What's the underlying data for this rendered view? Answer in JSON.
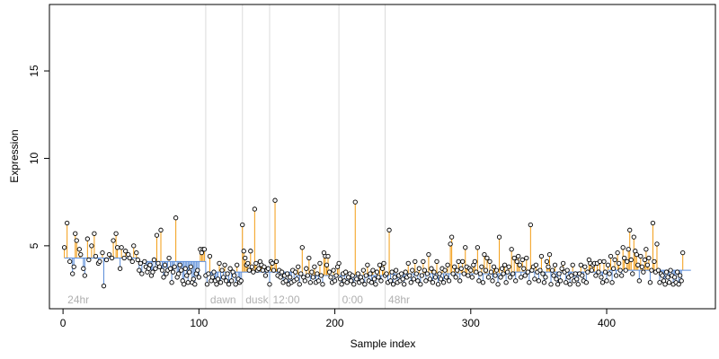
{
  "chart_data": {
    "type": "scatter",
    "title": "",
    "xlabel": "Sample index",
    "ylabel": "Expression",
    "xlim": [
      -10,
      480
    ],
    "ylim": [
      1.4,
      18.8
    ],
    "xticks": [
      0,
      100,
      200,
      300,
      400
    ],
    "yticks": [
      5,
      10,
      15
    ],
    "baselines": [
      {
        "x_start": 1,
        "x_end": 54,
        "y": 4.3
      },
      {
        "x_start": 55,
        "x_end": 105,
        "y": 4.1
      },
      {
        "x_start": 106,
        "x_end": 170,
        "y": 3.5
      },
      {
        "x_start": 171,
        "x_end": 240,
        "y": 3.3
      },
      {
        "x_start": 241,
        "x_end": 330,
        "y": 3.4
      },
      {
        "x_start": 331,
        "x_end": 400,
        "y": 3.5
      },
      {
        "x_start": 401,
        "x_end": 462,
        "y": 3.6
      }
    ],
    "vlines": [
      105,
      132,
      152,
      203,
      237
    ],
    "annotations": [
      {
        "x": 2,
        "label": "24hr"
      },
      {
        "x": 107,
        "label": "dawn"
      },
      {
        "x": 133,
        "label": "dusk"
      },
      {
        "x": 153,
        "label": "12:00"
      },
      {
        "x": 204,
        "label": "0:00"
      },
      {
        "x": 238,
        "label": "48hr"
      }
    ],
    "points": [
      [
        1,
        4.9
      ],
      [
        3,
        6.3
      ],
      [
        5,
        4.1
      ],
      [
        7,
        3.4
      ],
      [
        8,
        3.8
      ],
      [
        9,
        5.7
      ],
      [
        10,
        5.3
      ],
      [
        12,
        4.8
      ],
      [
        13,
        4.5
      ],
      [
        15,
        3.7
      ],
      [
        16,
        3.3
      ],
      [
        18,
        5.4
      ],
      [
        19,
        4.2
      ],
      [
        21,
        5.0
      ],
      [
        23,
        5.7
      ],
      [
        24,
        4.4
      ],
      [
        26,
        4.0
      ],
      [
        27,
        4.1
      ],
      [
        29,
        4.6
      ],
      [
        30,
        2.7
      ],
      [
        32,
        4.2
      ],
      [
        34,
        4.5
      ],
      [
        36,
        4.3
      ],
      [
        37,
        5.3
      ],
      [
        39,
        5.7
      ],
      [
        40,
        4.9
      ],
      [
        42,
        3.7
      ],
      [
        43,
        4.9
      ],
      [
        45,
        4.3
      ],
      [
        46,
        4.7
      ],
      [
        48,
        4.5
      ],
      [
        49,
        4.3
      ],
      [
        51,
        4.1
      ],
      [
        52,
        5.0
      ],
      [
        54,
        4.6
      ],
      [
        55,
        4.2
      ],
      [
        56,
        3.6
      ],
      [
        57,
        4.0
      ],
      [
        58,
        3.4
      ],
      [
        60,
        4.1
      ],
      [
        61,
        3.8
      ],
      [
        62,
        3.5
      ],
      [
        63,
        3.7
      ],
      [
        64,
        3.9
      ],
      [
        65,
        3.3
      ],
      [
        66,
        3.5
      ],
      [
        67,
        4.2
      ],
      [
        68,
        3.7
      ],
      [
        69,
        5.6
      ],
      [
        70,
        4.0
      ],
      [
        71,
        3.8
      ],
      [
        72,
        5.9
      ],
      [
        73,
        3.6
      ],
      [
        74,
        3.2
      ],
      [
        75,
        3.9
      ],
      [
        76,
        3.4
      ],
      [
        77,
        3.6
      ],
      [
        78,
        4.3
      ],
      [
        79,
        3.7
      ],
      [
        80,
        2.9
      ],
      [
        81,
        3.5
      ],
      [
        82,
        3.8
      ],
      [
        83,
        6.6
      ],
      [
        84,
        3.2
      ],
      [
        85,
        3.4
      ],
      [
        86,
        3.9
      ],
      [
        87,
        3.6
      ],
      [
        88,
        3.0
      ],
      [
        89,
        2.8
      ],
      [
        90,
        3.7
      ],
      [
        91,
        3.3
      ],
      [
        92,
        2.9
      ],
      [
        93,
        3.5
      ],
      [
        94,
        3.8
      ],
      [
        95,
        2.9
      ],
      [
        96,
        3.1
      ],
      [
        97,
        2.8
      ],
      [
        98,
        3.4
      ],
      [
        99,
        3.6
      ],
      [
        100,
        3.2
      ],
      [
        101,
        4.8
      ],
      [
        102,
        4.6
      ],
      [
        103,
        4.8
      ],
      [
        104,
        4.8
      ],
      [
        105,
        3.3
      ],
      [
        106,
        2.8
      ],
      [
        107,
        3.4
      ],
      [
        108,
        4.4
      ],
      [
        109,
        3.0
      ],
      [
        110,
        3.2
      ],
      [
        111,
        3.5
      ],
      [
        112,
        3.0
      ],
      [
        113,
        2.8
      ],
      [
        114,
        3.1
      ],
      [
        115,
        4.0
      ],
      [
        116,
        2.9
      ],
      [
        117,
        3.6
      ],
      [
        118,
        3.2
      ],
      [
        119,
        3.9
      ],
      [
        120,
        3.0
      ],
      [
        121,
        3.4
      ],
      [
        122,
        2.8
      ],
      [
        123,
        3.7
      ],
      [
        124,
        3.0
      ],
      [
        125,
        3.5
      ],
      [
        126,
        3.3
      ],
      [
        127,
        2.8
      ],
      [
        128,
        3.9
      ],
      [
        129,
        3.1
      ],
      [
        130,
        2.9
      ],
      [
        131,
        3.0
      ],
      [
        132,
        6.2
      ],
      [
        133,
        4.7
      ],
      [
        134,
        4.3
      ],
      [
        135,
        3.9
      ],
      [
        136,
        4.0
      ],
      [
        137,
        3.6
      ],
      [
        138,
        4.7
      ],
      [
        139,
        3.8
      ],
      [
        140,
        3.5
      ],
      [
        141,
        7.1
      ],
      [
        142,
        4.0
      ],
      [
        143,
        3.6
      ],
      [
        144,
        3.7
      ],
      [
        145,
        4.1
      ],
      [
        146,
        3.9
      ],
      [
        147,
        3.6
      ],
      [
        148,
        3.8
      ],
      [
        149,
        3.3
      ],
      [
        150,
        3.6
      ],
      [
        151,
        3.7
      ],
      [
        152,
        2.8
      ],
      [
        153,
        4.1
      ],
      [
        154,
        4.0
      ],
      [
        155,
        3.6
      ],
      [
        156,
        7.6
      ],
      [
        157,
        4.1
      ],
      [
        158,
        3.3
      ],
      [
        159,
        3.6
      ],
      [
        160,
        3.2
      ],
      [
        161,
        3.5
      ],
      [
        162,
        2.9
      ],
      [
        163,
        3.3
      ],
      [
        164,
        3.0
      ],
      [
        165,
        3.4
      ],
      [
        166,
        2.8
      ],
      [
        167,
        3.2
      ],
      [
        168,
        2.9
      ],
      [
        169,
        3.6
      ],
      [
        170,
        3.0
      ],
      [
        171,
        3.5
      ],
      [
        172,
        3.1
      ],
      [
        173,
        3.8
      ],
      [
        174,
        2.8
      ],
      [
        175,
        3.4
      ],
      [
        176,
        4.9
      ],
      [
        177,
        3.2
      ],
      [
        178,
        3.0
      ],
      [
        179,
        3.7
      ],
      [
        180,
        3.3
      ],
      [
        181,
        4.3
      ],
      [
        182,
        2.9
      ],
      [
        183,
        3.5
      ],
      [
        184,
        3.2
      ],
      [
        185,
        3.8
      ],
      [
        186,
        2.9
      ],
      [
        187,
        3.4
      ],
      [
        188,
        3.0
      ],
      [
        189,
        4.0
      ],
      [
        190,
        3.3
      ],
      [
        191,
        2.8
      ],
      [
        192,
        4.6
      ],
      [
        193,
        4.4
      ],
      [
        194,
        3.9
      ],
      [
        195,
        4.4
      ],
      [
        196,
        3.5
      ],
      [
        197,
        3.2
      ],
      [
        198,
        2.9
      ],
      [
        199,
        3.6
      ],
      [
        200,
        3.0
      ],
      [
        201,
        3.3
      ],
      [
        202,
        3.8
      ],
      [
        203,
        4.0
      ],
      [
        204,
        3.1
      ],
      [
        205,
        2.8
      ],
      [
        206,
        3.4
      ],
      [
        207,
        3.0
      ],
      [
        208,
        3.5
      ],
      [
        209,
        2.9
      ],
      [
        210,
        3.2
      ],
      [
        211,
        3.4
      ],
      [
        212,
        3.0
      ],
      [
        213,
        3.3
      ],
      [
        214,
        2.8
      ],
      [
        215,
        7.5
      ],
      [
        216,
        3.1
      ],
      [
        217,
        3.4
      ],
      [
        218,
        2.9
      ],
      [
        219,
        3.2
      ],
      [
        220,
        3.0
      ],
      [
        221,
        3.6
      ],
      [
        222,
        2.8
      ],
      [
        223,
        3.3
      ],
      [
        224,
        3.9
      ],
      [
        225,
        3.0
      ],
      [
        226,
        3.4
      ],
      [
        227,
        2.9
      ],
      [
        228,
        3.6
      ],
      [
        229,
        3.1
      ],
      [
        230,
        2.8
      ],
      [
        231,
        3.5
      ],
      [
        232,
        3.2
      ],
      [
        233,
        3.9
      ],
      [
        234,
        3.0
      ],
      [
        235,
        3.7
      ],
      [
        236,
        4.0
      ],
      [
        237,
        3.3
      ],
      [
        238,
        3.4
      ],
      [
        239,
        2.9
      ],
      [
        240,
        5.9
      ],
      [
        241,
        3.0
      ],
      [
        242,
        3.5
      ],
      [
        243,
        2.8
      ],
      [
        244,
        3.2
      ],
      [
        245,
        3.6
      ],
      [
        246,
        2.9
      ],
      [
        247,
        3.3
      ],
      [
        248,
        3.0
      ],
      [
        249,
        3.4
      ],
      [
        250,
        3.1
      ],
      [
        251,
        2.8
      ],
      [
        252,
        3.5
      ],
      [
        253,
        3.2
      ],
      [
        254,
        4.0
      ],
      [
        255,
        3.3
      ],
      [
        256,
        2.9
      ],
      [
        257,
        3.6
      ],
      [
        258,
        3.1
      ],
      [
        259,
        4.1
      ],
      [
        260,
        3.4
      ],
      [
        261,
        3.0
      ],
      [
        262,
        3.7
      ],
      [
        263,
        2.8
      ],
      [
        264,
        3.3
      ],
      [
        265,
        4.1
      ],
      [
        266,
        3.6
      ],
      [
        267,
        3.0
      ],
      [
        268,
        3.4
      ],
      [
        269,
        4.5
      ],
      [
        270,
        3.1
      ],
      [
        271,
        3.7
      ],
      [
        272,
        2.9
      ],
      [
        273,
        3.5
      ],
      [
        274,
        3.2
      ],
      [
        275,
        4.1
      ],
      [
        276,
        2.8
      ],
      [
        277,
        3.4
      ],
      [
        278,
        3.1
      ],
      [
        279,
        3.7
      ],
      [
        280,
        2.9
      ],
      [
        281,
        3.6
      ],
      [
        282,
        3.2
      ],
      [
        283,
        3.9
      ],
      [
        284,
        3.0
      ],
      [
        285,
        5.1
      ],
      [
        286,
        5.5
      ],
      [
        287,
        3.4
      ],
      [
        288,
        3.8
      ],
      [
        289,
        3.2
      ],
      [
        290,
        3.6
      ],
      [
        291,
        4.1
      ],
      [
        292,
        3.0
      ],
      [
        293,
        3.7
      ],
      [
        294,
        4.1
      ],
      [
        295,
        3.4
      ],
      [
        296,
        4.9
      ],
      [
        297,
        3.8
      ],
      [
        298,
        3.3
      ],
      [
        299,
        3.7
      ],
      [
        300,
        3.6
      ],
      [
        301,
        3.2
      ],
      [
        302,
        3.9
      ],
      [
        303,
        4.1
      ],
      [
        304,
        3.5
      ],
      [
        305,
        4.9
      ],
      [
        306,
        3.0
      ],
      [
        307,
        3.4
      ],
      [
        308,
        3.8
      ],
      [
        309,
        2.9
      ],
      [
        310,
        4.5
      ],
      [
        311,
        3.6
      ],
      [
        312,
        4.3
      ],
      [
        313,
        3.2
      ],
      [
        314,
        4.1
      ],
      [
        315,
        3.5
      ],
      [
        316,
        3.0
      ],
      [
        317,
        3.8
      ],
      [
        318,
        3.3
      ],
      [
        319,
        3.6
      ],
      [
        320,
        2.8
      ],
      [
        321,
        5.5
      ],
      [
        322,
        3.2
      ],
      [
        323,
        3.7
      ],
      [
        324,
        3.4
      ],
      [
        325,
        3.9
      ],
      [
        326,
        2.9
      ],
      [
        327,
        3.5
      ],
      [
        328,
        3.8
      ],
      [
        329,
        3.2
      ],
      [
        330,
        4.8
      ],
      [
        331,
        3.4
      ],
      [
        332,
        4.3
      ],
      [
        333,
        3.0
      ],
      [
        334,
        4.1
      ],
      [
        335,
        4.4
      ],
      [
        336,
        3.9
      ],
      [
        337,
        3.2
      ],
      [
        338,
        4.2
      ],
      [
        339,
        3.7
      ],
      [
        340,
        3.3
      ],
      [
        341,
        4.3
      ],
      [
        342,
        3.5
      ],
      [
        343,
        2.9
      ],
      [
        344,
        6.2
      ],
      [
        345,
        3.6
      ],
      [
        346,
        3.8
      ],
      [
        347,
        3.1
      ],
      [
        348,
        3.9
      ],
      [
        349,
        3.5
      ],
      [
        350,
        3.0
      ],
      [
        351,
        3.6
      ],
      [
        352,
        4.4
      ],
      [
        353,
        3.4
      ],
      [
        354,
        2.9
      ],
      [
        355,
        3.2
      ],
      [
        356,
        4.1
      ],
      [
        357,
        3.8
      ],
      [
        358,
        4.5
      ],
      [
        359,
        2.8
      ],
      [
        360,
        3.6
      ],
      [
        361,
        3.3
      ],
      [
        362,
        3.9
      ],
      [
        363,
        3.1
      ],
      [
        364,
        2.8
      ],
      [
        365,
        3.4
      ],
      [
        366,
        3.0
      ],
      [
        367,
        3.7
      ],
      [
        368,
        4.0
      ],
      [
        369,
        3.5
      ],
      [
        370,
        2.9
      ],
      [
        371,
        3.6
      ],
      [
        372,
        3.2
      ],
      [
        373,
        2.8
      ],
      [
        374,
        3.3
      ],
      [
        375,
        3.9
      ],
      [
        376,
        3.0
      ],
      [
        377,
        3.4
      ],
      [
        378,
        3.1
      ],
      [
        379,
        2.8
      ],
      [
        380,
        3.4
      ],
      [
        381,
        3.9
      ],
      [
        382,
        3.3
      ],
      [
        383,
        3.0
      ],
      [
        384,
        3.8
      ],
      [
        385,
        2.9
      ],
      [
        386,
        3.5
      ],
      [
        387,
        4.2
      ],
      [
        388,
        4.0
      ],
      [
        389,
        3.6
      ],
      [
        390,
        3.9
      ],
      [
        391,
        4.0
      ],
      [
        392,
        3.3
      ],
      [
        393,
        4.0
      ],
      [
        394,
        3.5
      ],
      [
        395,
        4.1
      ],
      [
        396,
        3.2
      ],
      [
        397,
        2.9
      ],
      [
        398,
        4.1
      ],
      [
        399,
        3.5
      ],
      [
        400,
        3.0
      ],
      [
        401,
        3.9
      ],
      [
        402,
        3.4
      ],
      [
        403,
        4.4
      ],
      [
        404,
        2.9
      ],
      [
        405,
        3.7
      ],
      [
        406,
        4.2
      ],
      [
        407,
        3.3
      ],
      [
        408,
        4.6
      ],
      [
        409,
        4.0
      ],
      [
        410,
        3.6
      ],
      [
        411,
        3.3
      ],
      [
        412,
        4.9
      ],
      [
        413,
        4.3
      ],
      [
        414,
        3.6
      ],
      [
        415,
        4.1
      ],
      [
        416,
        4.8
      ],
      [
        417,
        5.9
      ],
      [
        418,
        4.2
      ],
      [
        419,
        3.4
      ],
      [
        420,
        5.5
      ],
      [
        421,
        4.7
      ],
      [
        422,
        4.5
      ],
      [
        423,
        3.9
      ],
      [
        424,
        3.0
      ],
      [
        425,
        4.4
      ],
      [
        426,
        3.8
      ],
      [
        427,
        3.5
      ],
      [
        428,
        4.2
      ],
      [
        429,
        4.8
      ],
      [
        430,
        3.9
      ],
      [
        431,
        4.3
      ],
      [
        432,
        2.9
      ],
      [
        433,
        3.6
      ],
      [
        434,
        6.3
      ],
      [
        435,
        4.1
      ],
      [
        436,
        3.5
      ],
      [
        437,
        5.1
      ],
      [
        438,
        3.6
      ],
      [
        439,
        2.9
      ],
      [
        440,
        3.4
      ],
      [
        441,
        3.3
      ],
      [
        442,
        3.0
      ],
      [
        443,
        2.8
      ],
      [
        444,
        3.5
      ],
      [
        445,
        3.2
      ],
      [
        446,
        2.9
      ],
      [
        447,
        3.6
      ],
      [
        448,
        3.3
      ],
      [
        449,
        2.8
      ],
      [
        450,
        3.2
      ],
      [
        451,
        2.9
      ],
      [
        452,
        3.5
      ],
      [
        453,
        2.8
      ],
      [
        454,
        3.3
      ],
      [
        455,
        3.0
      ],
      [
        456,
        4.6
      ]
    ],
    "colors": {
      "above": "#f39c12",
      "below": "#5b8dd9",
      "vline": "#dcdcdc",
      "annotation": "#b0b0b0",
      "point_stroke": "#000000",
      "point_fill": "#ffffff"
    },
    "grid": false,
    "legend": "none"
  }
}
